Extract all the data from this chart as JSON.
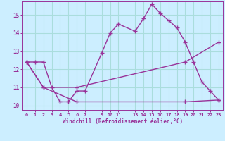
{
  "background_color": "#cceeff",
  "grid_color": "#aadddd",
  "line_color": "#993399",
  "xlabel": "Windchill (Refroidissement éolien,°C)",
  "xlim": [
    -0.5,
    23.5
  ],
  "ylim": [
    9.75,
    15.75
  ],
  "yticks": [
    10,
    11,
    12,
    13,
    14,
    15
  ],
  "xticks": [
    0,
    1,
    2,
    3,
    4,
    5,
    6,
    7,
    9,
    10,
    11,
    13,
    14,
    15,
    16,
    17,
    18,
    19,
    20,
    21,
    22,
    23
  ],
  "series1_x": [
    0,
    1,
    2,
    3,
    4,
    5,
    6,
    7,
    9,
    10,
    11,
    13,
    14,
    15,
    16,
    17,
    18,
    19,
    20,
    21,
    22,
    23
  ],
  "series1_y": [
    12.4,
    12.4,
    12.4,
    11.0,
    10.2,
    10.2,
    10.8,
    10.8,
    12.9,
    14.0,
    14.5,
    14.1,
    14.8,
    15.6,
    15.1,
    14.7,
    14.3,
    13.5,
    12.4,
    11.3,
    10.8,
    10.3
  ],
  "series2_x": [
    0,
    2,
    6,
    19,
    23
  ],
  "series2_y": [
    12.4,
    11.0,
    11.0,
    12.4,
    13.5
  ],
  "series3_x": [
    0,
    2,
    6,
    19,
    23
  ],
  "series3_y": [
    12.4,
    11.0,
    10.2,
    10.2,
    10.3
  ],
  "linewidth": 1.0,
  "markersize": 4,
  "marker": "+"
}
